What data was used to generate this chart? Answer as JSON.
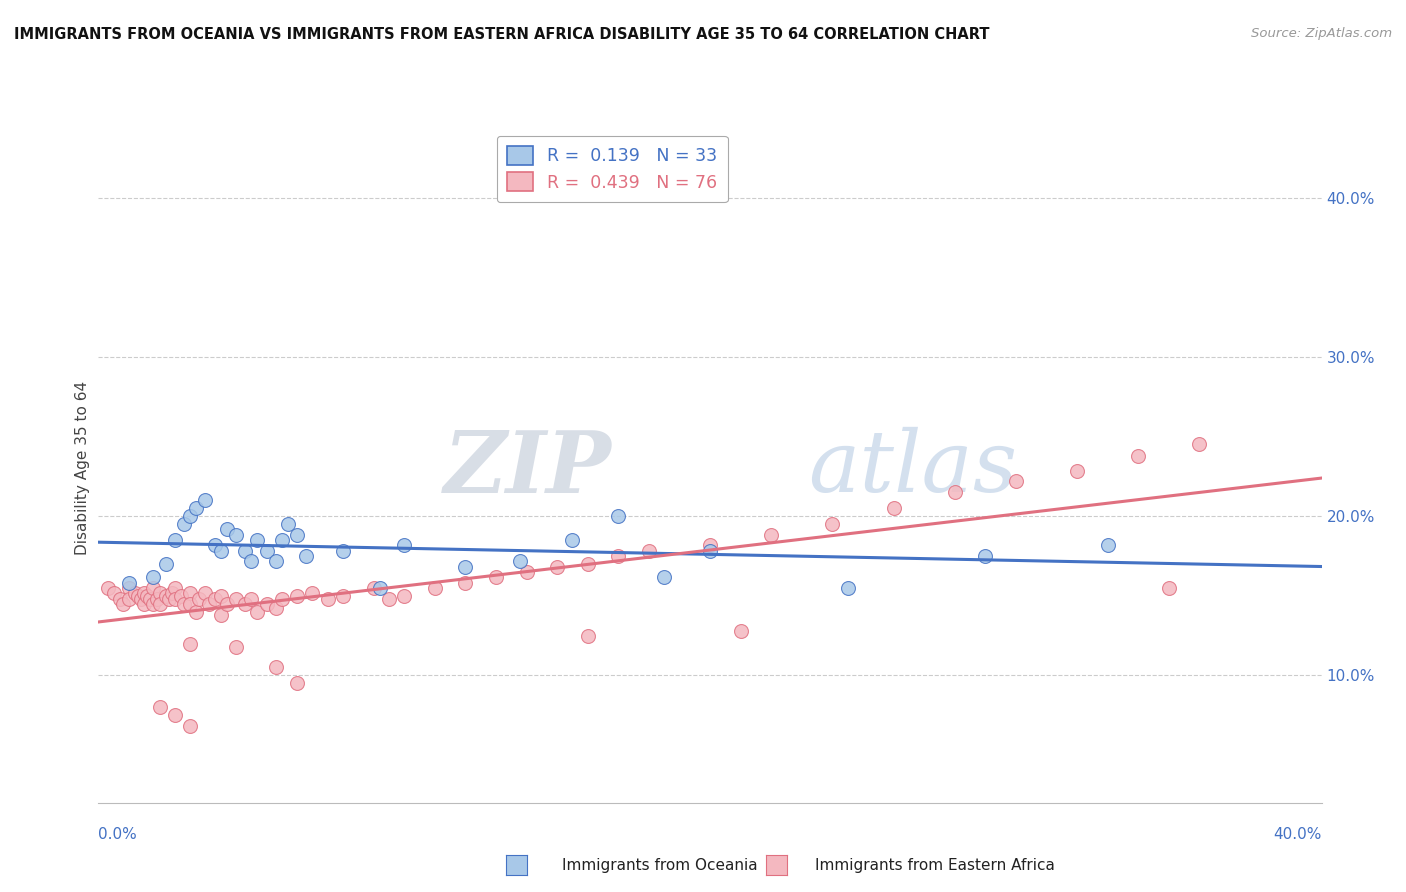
{
  "title": "IMMIGRANTS FROM OCEANIA VS IMMIGRANTS FROM EASTERN AFRICA DISABILITY AGE 35 TO 64 CORRELATION CHART",
  "source": "Source: ZipAtlas.com",
  "ylabel": "Disability Age 35 to 64",
  "xlim": [
    0.0,
    0.4
  ],
  "ylim": [
    0.02,
    0.44
  ],
  "y_ticks": [
    0.1,
    0.2,
    0.3,
    0.4
  ],
  "y_tick_labels": [
    "10.0%",
    "20.0%",
    "30.0%",
    "40.0%"
  ],
  "legend_r1": "R =  0.139",
  "legend_n1": "N = 33",
  "legend_r2": "R =  0.439",
  "legend_n2": "N = 76",
  "color_oceania": "#a8c8e8",
  "color_eastern_africa": "#f4b8c0",
  "color_line_oceania": "#4472c4",
  "color_line_eastern_africa": "#e07080",
  "watermark_zip": "ZIP",
  "watermark_atlas": "atlas",
  "oceania_x": [
    0.01,
    0.018,
    0.022,
    0.025,
    0.028,
    0.03,
    0.032,
    0.035,
    0.038,
    0.04,
    0.042,
    0.045,
    0.048,
    0.05,
    0.052,
    0.055,
    0.058,
    0.06,
    0.062,
    0.065,
    0.068,
    0.08,
    0.092,
    0.1,
    0.12,
    0.138,
    0.155,
    0.17,
    0.185,
    0.2,
    0.245,
    0.29,
    0.33
  ],
  "oceania_y": [
    0.158,
    0.162,
    0.17,
    0.185,
    0.195,
    0.2,
    0.205,
    0.21,
    0.182,
    0.178,
    0.192,
    0.188,
    0.178,
    0.172,
    0.185,
    0.178,
    0.172,
    0.185,
    0.195,
    0.188,
    0.175,
    0.178,
    0.155,
    0.182,
    0.168,
    0.172,
    0.185,
    0.2,
    0.162,
    0.178,
    0.155,
    0.175,
    0.182
  ],
  "eastern_africa_x": [
    0.003,
    0.005,
    0.007,
    0.008,
    0.01,
    0.01,
    0.012,
    0.013,
    0.014,
    0.015,
    0.015,
    0.016,
    0.017,
    0.018,
    0.018,
    0.019,
    0.02,
    0.02,
    0.022,
    0.023,
    0.024,
    0.025,
    0.025,
    0.027,
    0.028,
    0.03,
    0.03,
    0.032,
    0.033,
    0.035,
    0.036,
    0.038,
    0.04,
    0.04,
    0.042,
    0.045,
    0.048,
    0.05,
    0.052,
    0.055,
    0.058,
    0.06,
    0.065,
    0.07,
    0.075,
    0.08,
    0.09,
    0.095,
    0.1,
    0.11,
    0.12,
    0.13,
    0.14,
    0.15,
    0.16,
    0.17,
    0.18,
    0.2,
    0.22,
    0.24,
    0.26,
    0.28,
    0.3,
    0.32,
    0.34,
    0.36,
    0.058,
    0.065,
    0.03,
    0.045,
    0.16,
    0.21,
    0.02,
    0.025,
    0.03,
    0.35
  ],
  "eastern_africa_y": [
    0.155,
    0.152,
    0.148,
    0.145,
    0.155,
    0.148,
    0.152,
    0.15,
    0.148,
    0.152,
    0.145,
    0.15,
    0.148,
    0.155,
    0.145,
    0.148,
    0.152,
    0.145,
    0.15,
    0.148,
    0.152,
    0.155,
    0.148,
    0.15,
    0.145,
    0.152,
    0.145,
    0.14,
    0.148,
    0.152,
    0.145,
    0.148,
    0.15,
    0.138,
    0.145,
    0.148,
    0.145,
    0.148,
    0.14,
    0.145,
    0.142,
    0.148,
    0.15,
    0.152,
    0.148,
    0.15,
    0.155,
    0.148,
    0.15,
    0.155,
    0.158,
    0.162,
    0.165,
    0.168,
    0.17,
    0.175,
    0.178,
    0.182,
    0.188,
    0.195,
    0.205,
    0.215,
    0.222,
    0.228,
    0.238,
    0.245,
    0.105,
    0.095,
    0.12,
    0.118,
    0.125,
    0.128,
    0.08,
    0.075,
    0.068,
    0.155
  ]
}
